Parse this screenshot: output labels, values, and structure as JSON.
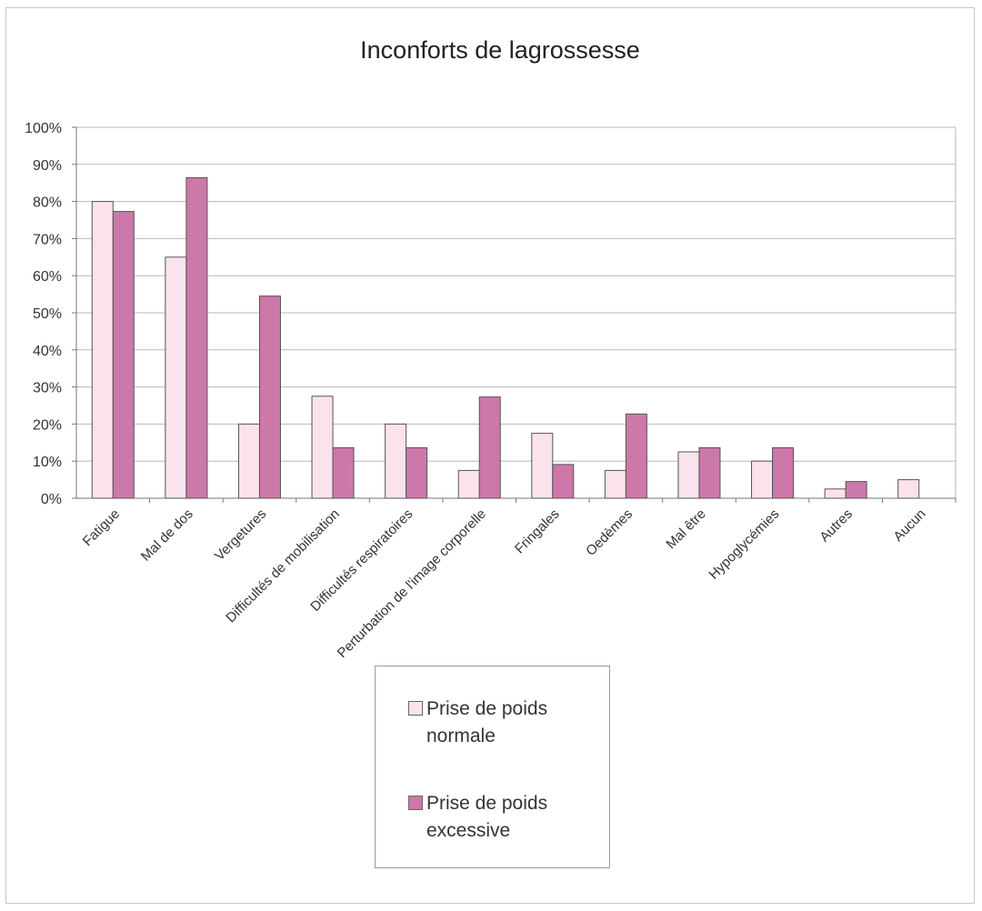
{
  "chart_data": {
    "type": "bar",
    "title": "Inconforts de lagrossesse",
    "categories": [
      "Fatigue",
      "Mal de dos",
      "Vergetures",
      "Difficultés de mobilisation",
      "Difficultés respiratoires",
      "Perturbation de l'image corporelle",
      "Fringales",
      "Oedèmes",
      "Mal être",
      "Hypoglycémies",
      "Autres",
      "Aucun"
    ],
    "series": [
      {
        "name": "Prise de poids normale",
        "color": "#fbe3ee",
        "values": [
          80,
          65,
          20,
          27.5,
          20,
          7.5,
          17.5,
          7.5,
          12.5,
          10,
          2.5,
          5
        ]
      },
      {
        "name": "Prise de poids excessive",
        "color": "#cc78a8",
        "values": [
          77.3,
          86.4,
          54.5,
          13.6,
          13.6,
          27.3,
          9.1,
          22.7,
          13.6,
          13.6,
          4.5,
          0
        ]
      }
    ],
    "ylim": [
      0,
      100
    ],
    "yticks": [
      0,
      10,
      20,
      30,
      40,
      50,
      60,
      70,
      80,
      90,
      100
    ],
    "ytick_suffix": "%",
    "grid": true,
    "legend_position": "bottom-center"
  }
}
